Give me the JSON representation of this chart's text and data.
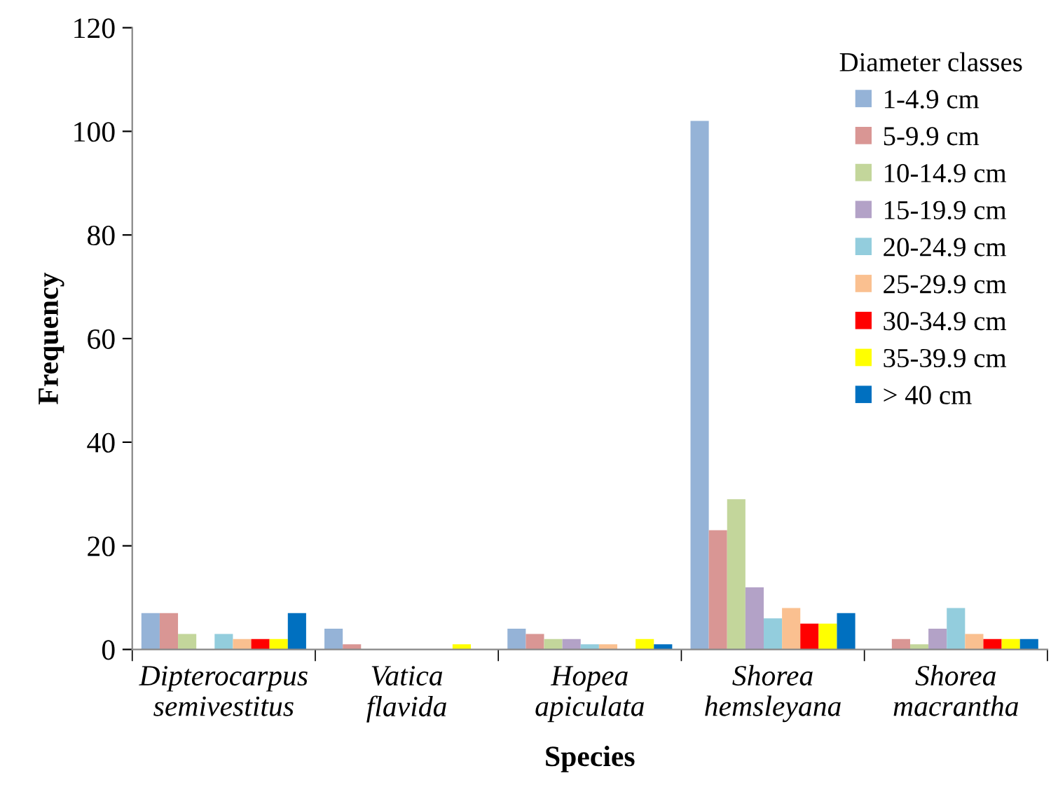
{
  "chart_data": {
    "type": "bar",
    "xlabel": "Species",
    "ylabel": "Frequency",
    "legend_title": "Diameter classes",
    "legend": "top right",
    "grid": false,
    "categories": [
      "Dipterocarpus\nsemivestitus",
      "Vatica\nflavida",
      "Hopea\napiculata",
      "Shorea\nhemsleyana",
      "Shorea\nmacrantha"
    ],
    "ylim": [
      0,
      120
    ],
    "yticks": [
      0,
      20,
      40,
      60,
      80,
      100,
      120
    ],
    "series": [
      {
        "name": "1-4.9 cm",
        "color": "#95b3d7",
        "values": [
          7,
          4,
          4,
          102,
          0
        ]
      },
      {
        "name": "5-9.9 cm",
        "color": "#d99694",
        "values": [
          7,
          1,
          3,
          23,
          2
        ]
      },
      {
        "name": "10-14.9 cm",
        "color": "#c3d69b",
        "values": [
          3,
          0,
          2,
          29,
          1
        ]
      },
      {
        "name": "15-19.9 cm",
        "color": "#b3a2c7",
        "values": [
          0,
          0,
          2,
          12,
          4
        ]
      },
      {
        "name": "20-24.9 cm",
        "color": "#93cddd",
        "values": [
          3,
          0,
          1,
          6,
          8
        ]
      },
      {
        "name": "25-29.9 cm",
        "color": "#fac090",
        "values": [
          2,
          0,
          1,
          8,
          3
        ]
      },
      {
        "name": "30-34.9 cm",
        "color": "#ff0000",
        "values": [
          2,
          0,
          0,
          5,
          2
        ]
      },
      {
        "name": "35-39.9 cm",
        "color": "#ffff00",
        "values": [
          2,
          1,
          2,
          5,
          2
        ]
      },
      {
        "name": "> 40 cm",
        "color": "#0070c0",
        "values": [
          7,
          0,
          1,
          7,
          2
        ]
      }
    ]
  }
}
